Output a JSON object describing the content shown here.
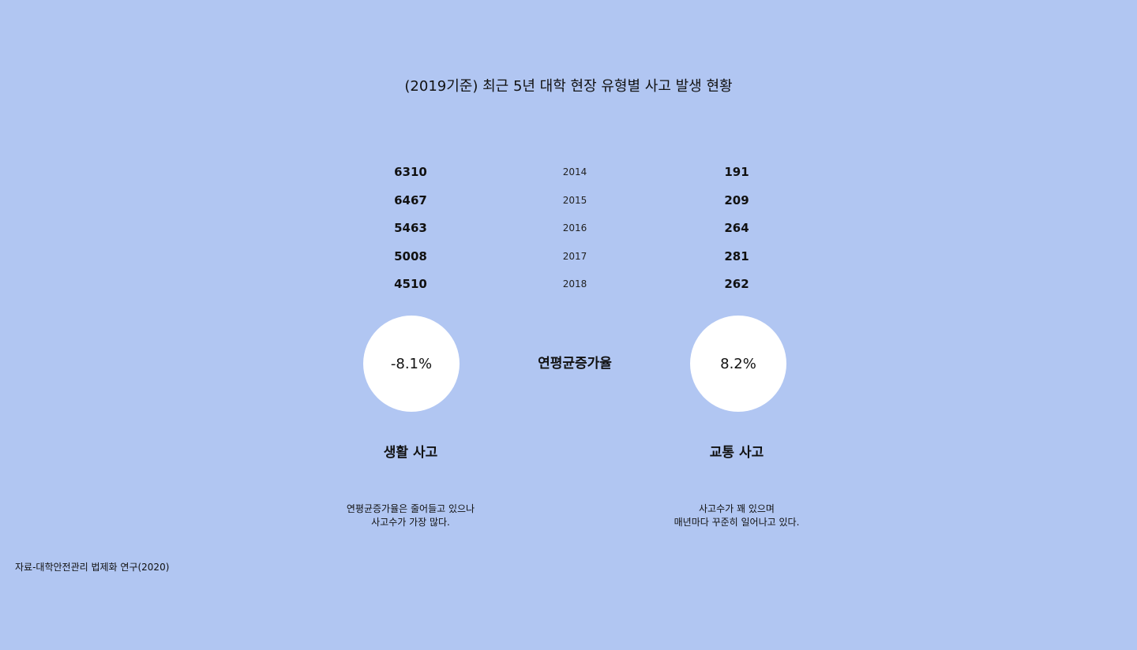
{
  "title": "(2019기준) 최근 5년 대학 현장 유형별 사고 발생 현황",
  "rows": [
    {
      "life": "6310",
      "year": "2014",
      "traffic": "191"
    },
    {
      "life": "6467",
      "year": "2015",
      "traffic": "209"
    },
    {
      "life": "5463",
      "year": "2016",
      "traffic": "264"
    },
    {
      "life": "5008",
      "year": "2017",
      "traffic": "281"
    },
    {
      "life": "4510",
      "year": "2018",
      "traffic": "262"
    }
  ],
  "rate_label": "연평균증가율",
  "life_rate": "-8.1%",
  "traffic_rate": "8.2%",
  "life_label": "생활 사고",
  "traffic_label": "교통 사고",
  "life_desc": [
    "연평균증가율은 줄어들고 있으나",
    "사고수가 가장 많다."
  ],
  "traffic_desc": [
    "사고수가 꽤 있으며",
    "매년마다 꾸준히 일어나고 있다."
  ],
  "source": "자료-대학안전관리 법제화 연구(2020)",
  "colors": {
    "background": "#b1c6f2",
    "circle": "#ffffff",
    "text": "#111111"
  }
}
